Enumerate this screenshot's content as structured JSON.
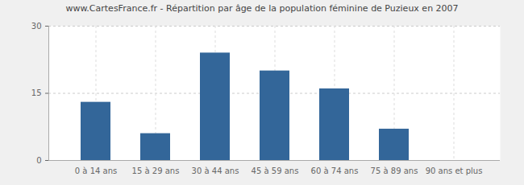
{
  "chart_data": {
    "type": "bar",
    "title": "www.CartesFrance.fr - Répartition par âge de la population féminine de Puzieux en 2007",
    "categories": [
      "0 à 14 ans",
      "15 à 29 ans",
      "30 à 44 ans",
      "45 à 59 ans",
      "60 à 74 ans",
      "75 à 89 ans",
      "90 ans et plus"
    ],
    "values": [
      13,
      6,
      24,
      20,
      16,
      7,
      0
    ],
    "color": "#336699",
    "ylim": [
      0,
      30
    ],
    "yticks": [
      0,
      15,
      30
    ],
    "grid": true
  }
}
